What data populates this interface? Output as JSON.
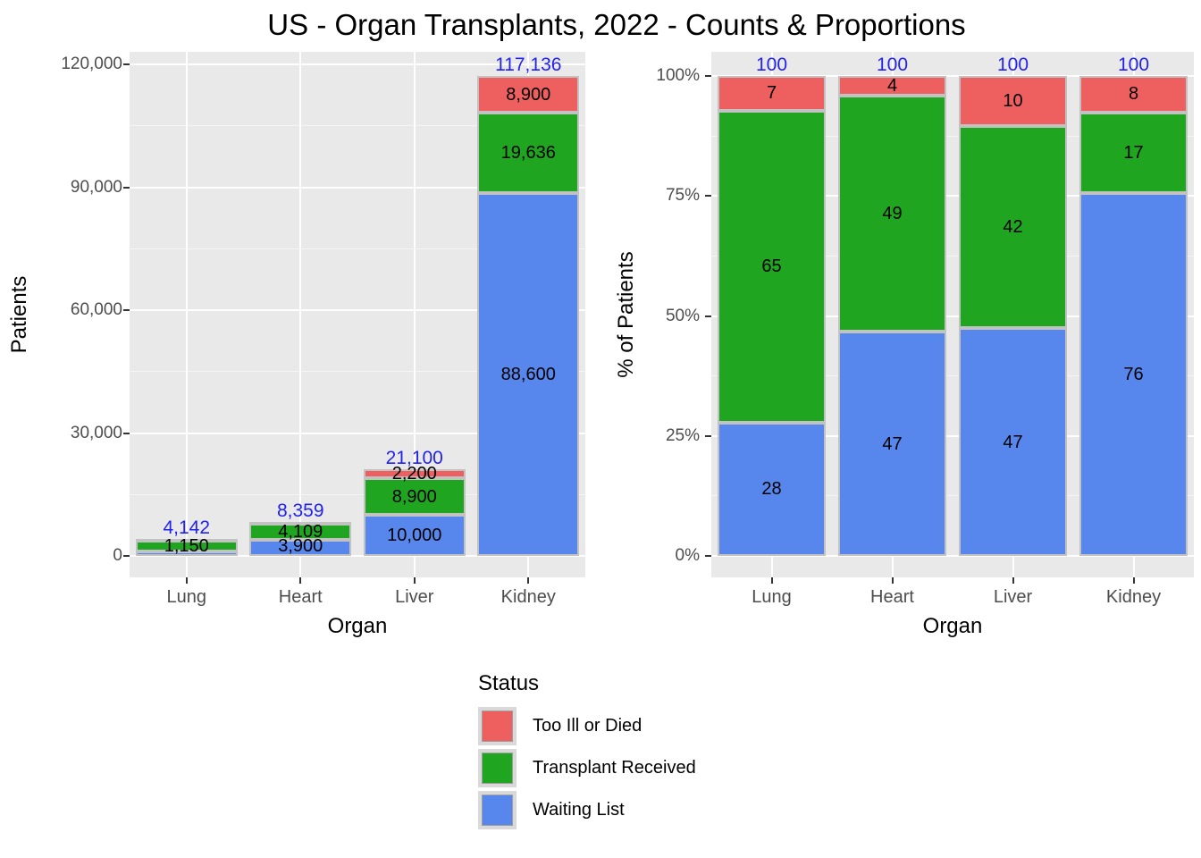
{
  "title": "US - Organ Transplants, 2022 - Counts & Proportions",
  "legend": {
    "title": "Status",
    "items": [
      {
        "label": "Too Ill or Died",
        "color": "#ee5f5f"
      },
      {
        "label": "Transplant Received",
        "color": "#1fa51f"
      },
      {
        "label": "Waiting List",
        "color": "#5787ec"
      }
    ]
  },
  "colors": {
    "panel_background": "#e9e9e9",
    "gridline": "#ffffff",
    "bar_border": "#c2c2c2",
    "axis_text": "#4d4d4d",
    "total_label": "#2222ee"
  },
  "chart_data": [
    {
      "type": "bar",
      "stacked": true,
      "xlabel": "Organ",
      "ylabel": "Patients",
      "categories": [
        "Lung",
        "Heart",
        "Liver",
        "Kidney"
      ],
      "ylim": [
        0,
        120000
      ],
      "grid": true,
      "y_ticks": [
        {
          "value": 0,
          "label": "0"
        },
        {
          "value": 30000,
          "label": "30,000"
        },
        {
          "value": 60000,
          "label": "60,000"
        },
        {
          "value": 90000,
          "label": "90,000"
        },
        {
          "value": 120000,
          "label": "120,000"
        }
      ],
      "series": [
        {
          "name": "Waiting List",
          "color": "#5787ec",
          "values": [
            1150,
            3900,
            10000,
            88600
          ],
          "labels": [
            "1,150",
            "3,900",
            "10,000",
            "88,600"
          ]
        },
        {
          "name": "Transplant Received",
          "color": "#1fa51f",
          "values": [
            2692,
            4109,
            8900,
            19636
          ],
          "labels": [
            null,
            "4,109",
            "8,900",
            "19,636"
          ]
        },
        {
          "name": "Too Ill or Died",
          "color": "#ee5f5f",
          "values": [
            300,
            350,
            2200,
            8900
          ],
          "labels": [
            null,
            null,
            "2,200",
            "8,900"
          ]
        }
      ],
      "totals": {
        "values": [
          4142,
          8359,
          21100,
          117136
        ],
        "labels": [
          "4,142",
          "8,359",
          "21,100",
          "117,136"
        ],
        "color": "#2222ee"
      }
    },
    {
      "type": "bar",
      "stacked": true,
      "xlabel": "Organ",
      "ylabel": "% of Patients",
      "categories": [
        "Lung",
        "Heart",
        "Liver",
        "Kidney"
      ],
      "ylim": [
        0,
        100
      ],
      "grid": true,
      "y_ticks": [
        {
          "value": 0,
          "label": "0%"
        },
        {
          "value": 25,
          "label": "25%"
        },
        {
          "value": 50,
          "label": "50%"
        },
        {
          "value": 75,
          "label": "75%"
        },
        {
          "value": 100,
          "label": "100%"
        }
      ],
      "series": [
        {
          "name": "Waiting List",
          "color": "#5787ec",
          "values": [
            27.8,
            46.7,
            47.4,
            75.6
          ],
          "labels": [
            "28",
            "47",
            "47",
            "76"
          ]
        },
        {
          "name": "Transplant Received",
          "color": "#1fa51f",
          "values": [
            65.0,
            49.2,
            42.2,
            16.8
          ],
          "labels": [
            "65",
            "49",
            "42",
            "17"
          ]
        },
        {
          "name": "Too Ill or Died",
          "color": "#ee5f5f",
          "values": [
            7.2,
            4.1,
            10.4,
            7.6
          ],
          "labels": [
            "7",
            "4",
            "10",
            "8"
          ]
        }
      ],
      "totals": {
        "values": [
          100,
          100,
          100,
          100
        ],
        "labels": [
          "100",
          "100",
          "100",
          "100"
        ],
        "color": "#2222ee"
      }
    }
  ]
}
